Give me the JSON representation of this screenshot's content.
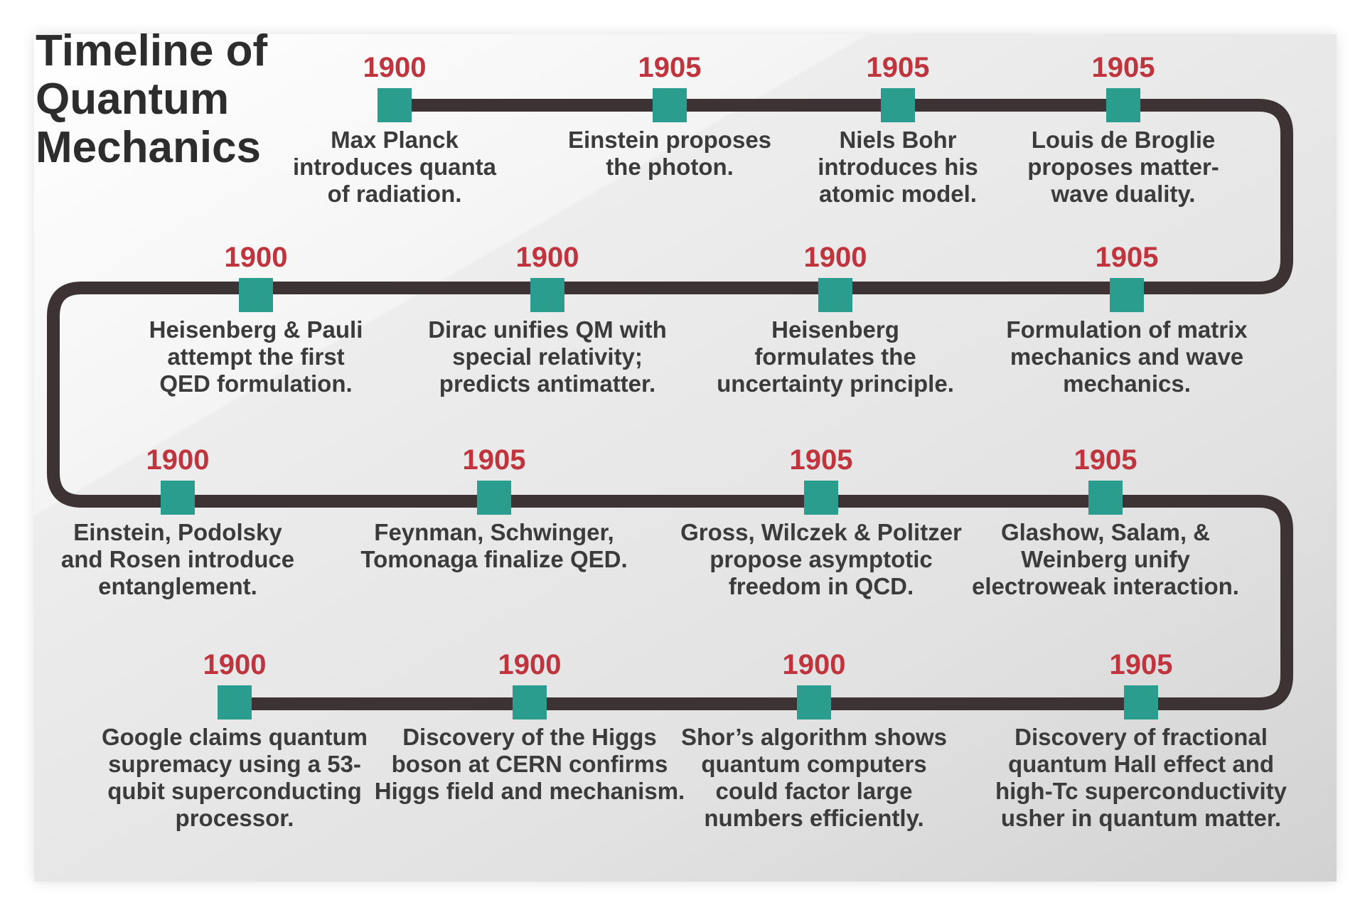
{
  "title": "Timeline of\nQuantum\nMechanics",
  "colors": {
    "track": "#3d3234",
    "marker": "#2a9d8f",
    "year": "#c0343d",
    "text": "#3b3b3b"
  },
  "events": [
    {
      "year": "1900",
      "text": "Max Planck\nintroduces quanta\nof radiation."
    },
    {
      "year": "1905",
      "text": "Einstein proposes\nthe photon."
    },
    {
      "year": "1905",
      "text": "Niels Bohr\nintroduces his\natomic model."
    },
    {
      "year": "1905",
      "text": "Louis de Broglie\nproposes matter-\nwave duality."
    },
    {
      "year": "1900",
      "text": "Heisenberg & Pauli\nattempt the first\nQED formulation."
    },
    {
      "year": "1900",
      "text": "Dirac unifies QM with\nspecial relativity;\npredicts antimatter."
    },
    {
      "year": "1900",
      "text": "Heisenberg\nformulates the\nuncertainty principle."
    },
    {
      "year": "1905",
      "text": "Formulation of matrix\nmechanics and wave\nmechanics."
    },
    {
      "year": "1900",
      "text": "Einstein, Podolsky\nand Rosen introduce\nentanglement."
    },
    {
      "year": "1905",
      "text": "Feynman, Schwinger,\nTomonaga finalize QED."
    },
    {
      "year": "1905",
      "text": "Gross, Wilczek & Politzer\npropose asymptotic\nfreedom in QCD."
    },
    {
      "year": "1905",
      "text": "Glashow, Salam, &\nWeinberg unify\nelectroweak interaction."
    },
    {
      "year": "1900",
      "text": "Google claims quantum\nsupremacy using a 53-\nqubit superconducting\nprocessor."
    },
    {
      "year": "1900",
      "text": "Discovery of the Higgs\nboson at CERN confirms\nHiggs field and mechanism."
    },
    {
      "year": "1900",
      "text": "Shor’s algorithm shows\nquantum computers\ncould factor large\nnumbers efficiently."
    },
    {
      "year": "1905",
      "text": "Discovery of fractional\nquantum Hall effect and\nhigh-Tc superconductivity\nusher in quantum matter."
    }
  ]
}
